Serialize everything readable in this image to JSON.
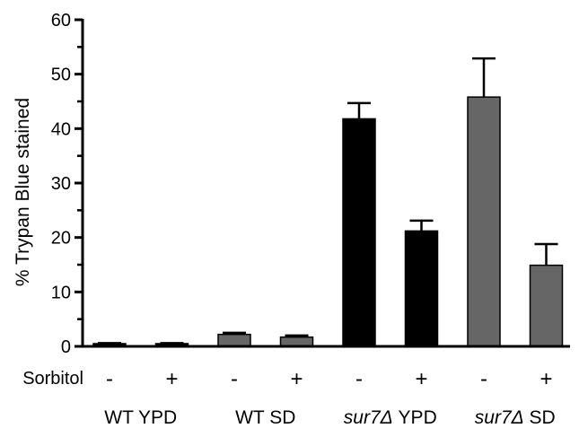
{
  "chart_data": {
    "type": "bar",
    "ylabel": "% Trypan Blue stained",
    "ylim": [
      0,
      60
    ],
    "yticks": [
      "0",
      "10",
      "20",
      "30",
      "40",
      "50",
      "60"
    ],
    "grid": false,
    "row_label": "Sorbitol",
    "categories": [
      "-",
      "+",
      "-",
      "+",
      "-",
      "+",
      "-",
      "+"
    ],
    "groups": [
      {
        "label_italic": "",
        "label_rest": "WT YPD"
      },
      {
        "label_italic": "",
        "label_rest": "WT SD"
      },
      {
        "label_italic": "sur7Δ",
        "label_rest": " YPD"
      },
      {
        "label_italic": "sur7Δ",
        "label_rest": " SD"
      }
    ],
    "values": [
      0.5,
      0.5,
      2.2,
      1.7,
      41.8,
      21.2,
      45.8,
      14.9
    ],
    "errors": [
      0.1,
      0.1,
      0.3,
      0.3,
      2.9,
      1.9,
      7.1,
      3.9
    ],
    "bar_colors": [
      "#000000",
      "#000000",
      "#666666",
      "#666666",
      "#000000",
      "#000000",
      "#666666",
      "#666666"
    ]
  }
}
